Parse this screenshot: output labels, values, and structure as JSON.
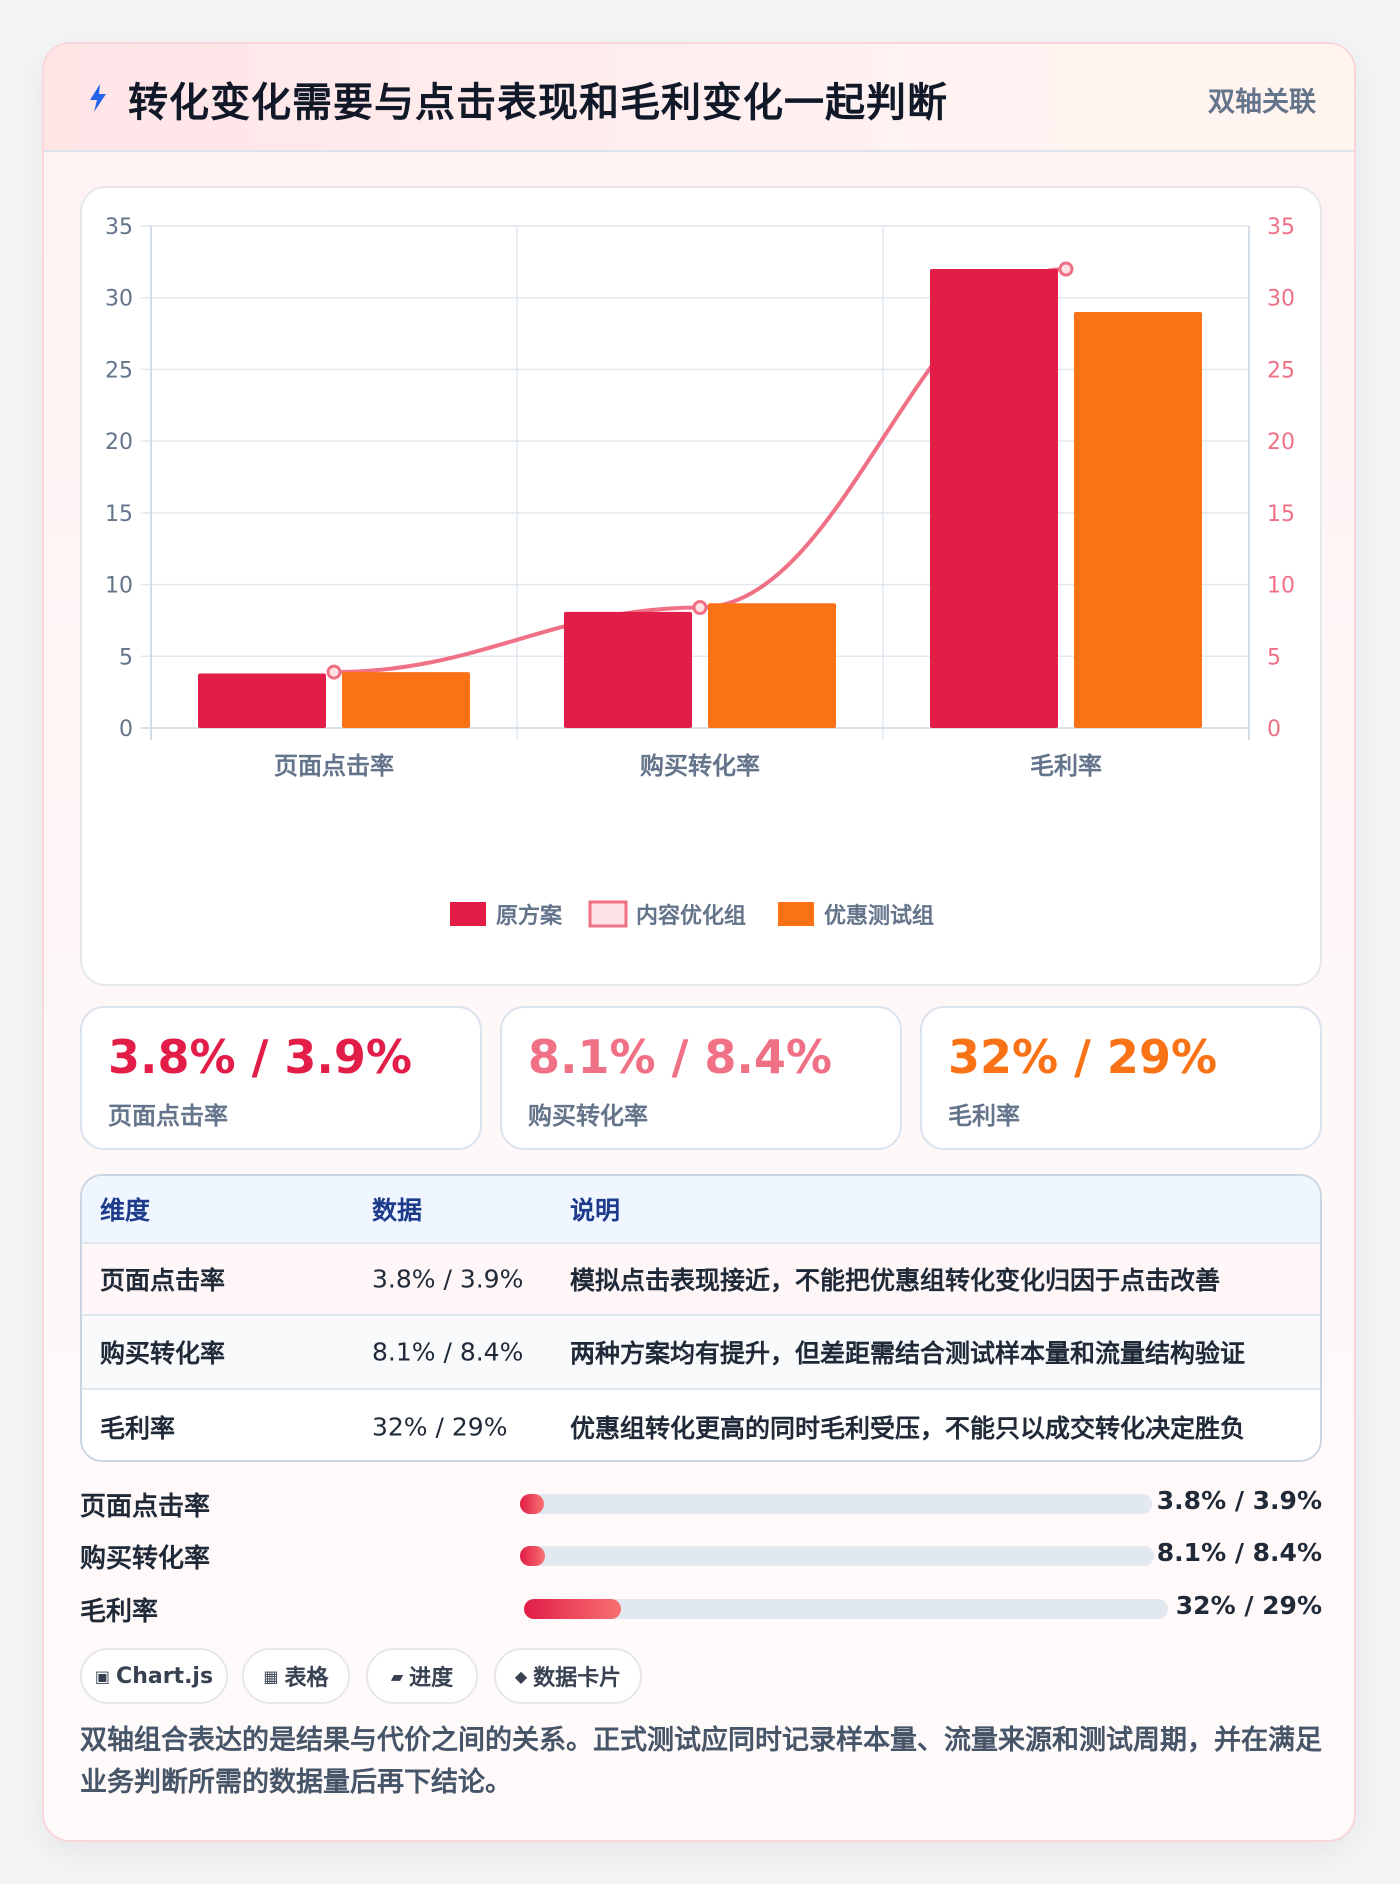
{
  "header": {
    "title": "转化变化需要与点击表现和毛利变化一起判断",
    "badge": "双轴关联",
    "icon": "lightning-icon"
  },
  "chart_data": {
    "type": "bar",
    "categories": [
      "页面点击率",
      "购买转化率",
      "毛利率"
    ],
    "series": [
      {
        "name": "原方案",
        "type": "bar",
        "axis": "left",
        "color": "#e11d48",
        "values": [
          3.8,
          8.1,
          32
        ]
      },
      {
        "name": "内容优化组",
        "type": "line",
        "axis": "right",
        "color": "#f07085",
        "values": [
          3.9,
          8.4,
          32
        ]
      },
      {
        "name": "优惠测试组",
        "type": "bar",
        "axis": "left",
        "color": "#f97316",
        "values": [
          3.9,
          8.7,
          29
        ]
      }
    ],
    "y_left": {
      "min": 0,
      "max": 35,
      "ticks": [
        0,
        5,
        10,
        15,
        20,
        25,
        30,
        35
      ]
    },
    "y_right": {
      "min": 0,
      "max": 35,
      "ticks": [
        0,
        5,
        10,
        15,
        20,
        25,
        30,
        35
      ]
    },
    "grid": true,
    "legend_position": "bottom"
  },
  "kpis": [
    {
      "value": "3.8% / 3.9%",
      "label": "页面点击率",
      "color": "#e11d48"
    },
    {
      "value": "8.1% / 8.4%",
      "label": "购买转化率",
      "color": "#f07085"
    },
    {
      "value": "32% / 29%",
      "label": "毛利率",
      "color": "#f97316"
    }
  ],
  "table": {
    "headers": [
      "维度",
      "数据",
      "说明"
    ],
    "rows": [
      [
        "页面点击率",
        "3.8% / 3.9%",
        "模拟点击表现接近，不能把优惠组转化变化归因于点击改善"
      ],
      [
        "购买转化率",
        "8.1% / 8.4%",
        "两种方案均有提升，但差距需结合测试样本量和流量结构验证"
      ],
      [
        "毛利率",
        "32% / 29%",
        "优惠组转化更高的同时毛利受压，不能只以成交转化决定胜负"
      ]
    ]
  },
  "progress": [
    {
      "label": "页面点击率",
      "value": "3.8% / 3.9%",
      "fraction": 0.038
    },
    {
      "label": "购买转化率",
      "value": "8.1% / 8.4%",
      "fraction": 0.039
    },
    {
      "label": "毛利率",
      "value": "32% / 29%",
      "fraction": 0.15
    }
  ],
  "tags": [
    {
      "icon": "▣",
      "label": "Chart.js"
    },
    {
      "icon": "▦",
      "label": "表格"
    },
    {
      "icon": "▰",
      "label": "进度"
    },
    {
      "icon": "◆",
      "label": "数据卡片"
    }
  ],
  "note": "双轴组合表达的是结果与代价之间的关系。正式测试应同时记录样本量、流量来源和测试周期，并在满足业务判断所需的数据量后再下结论。"
}
